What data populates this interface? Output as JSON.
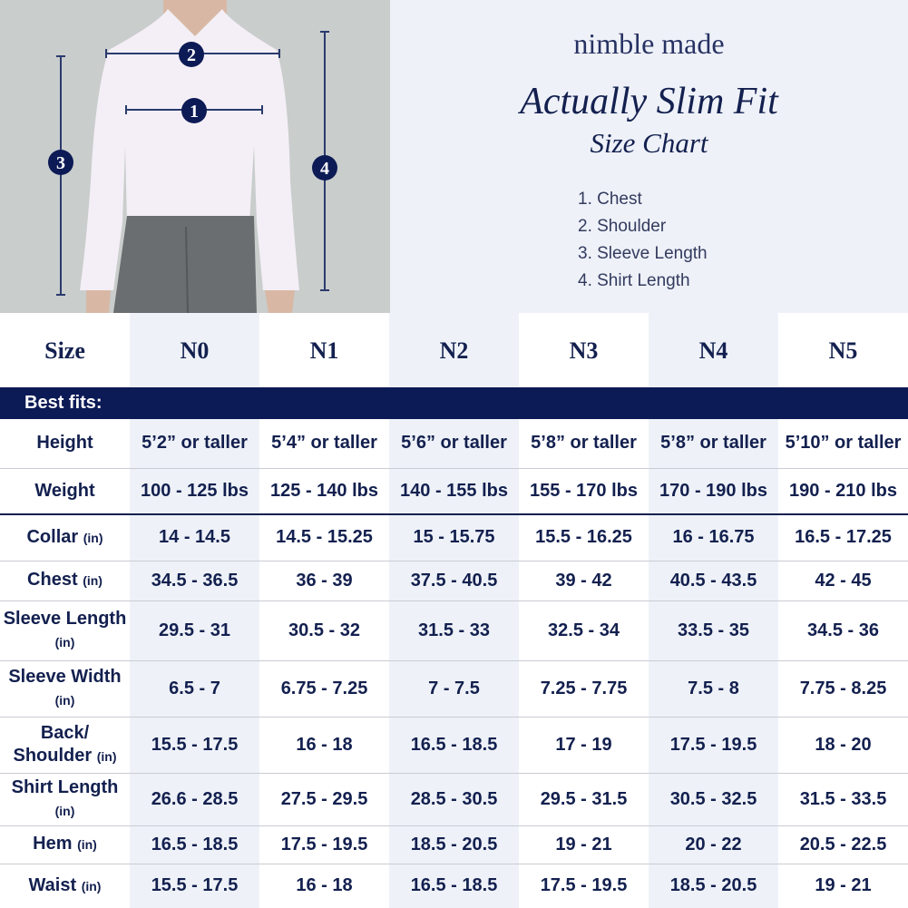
{
  "brand": "nimble made",
  "title": "Actually Slim Fit",
  "subtitle": "Size Chart",
  "legend": [
    "1. Chest",
    "2. Shoulder",
    "3. Sleeve Length",
    "4. Shirt Length"
  ],
  "markers": [
    "1",
    "2",
    "3",
    "4"
  ],
  "colors": {
    "navy": "#0c1a55",
    "shade": "#eef2f8"
  },
  "table": {
    "size_label": "Size",
    "sizes": [
      "N0",
      "N1",
      "N2",
      "N3",
      "N4",
      "N5"
    ],
    "band_label": "Best fits:",
    "unit": "(in)",
    "fit_rows": [
      {
        "label": "Height",
        "values": [
          "5’2” or taller",
          "5’4” or taller",
          "5’6” or taller",
          "5’8” or taller",
          "5’8” or taller",
          "5’10” or taller"
        ]
      },
      {
        "label": "Weight",
        "values": [
          "100 - 125 lbs",
          "125 - 140 lbs",
          "140 - 155 lbs",
          "155 - 170 lbs",
          "170 - 190 lbs",
          "190 - 210 lbs"
        ]
      }
    ],
    "rows": [
      {
        "label": "Collar",
        "values": [
          "14 - 14.5",
          "14.5 - 15.25",
          "15 - 15.75",
          "15.5 - 16.25",
          "16 - 16.75",
          "16.5 - 17.25"
        ]
      },
      {
        "label": "Chest",
        "values": [
          "34.5 - 36.5",
          "36 - 39",
          "37.5 - 40.5",
          "39 - 42",
          "40.5 - 43.5",
          "42 - 45"
        ]
      },
      {
        "label": "Sleeve Length",
        "values": [
          "29.5 - 31",
          "30.5 - 32",
          "31.5 - 33",
          "32.5 - 34",
          "33.5 - 35",
          "34.5 - 36"
        ]
      },
      {
        "label": "Sleeve Width",
        "values": [
          "6.5 - 7",
          "6.75 - 7.25",
          "7 - 7.5",
          "7.25 - 7.75",
          "7.5 - 8",
          "7.75 - 8.25"
        ]
      },
      {
        "label": "Back/ Shoulder",
        "values": [
          "15.5 - 17.5",
          "16 - 18",
          "16.5 - 18.5",
          "17 - 19",
          "17.5 - 19.5",
          "18 - 20"
        ]
      },
      {
        "label": "Shirt Length",
        "values": [
          "26.6 - 28.5",
          "27.5 - 29.5",
          "28.5 - 30.5",
          "29.5 - 31.5",
          "30.5 - 32.5",
          "31.5 - 33.5"
        ]
      },
      {
        "label": "Hem",
        "values": [
          "16.5 - 18.5",
          "17.5 - 19.5",
          "18.5 - 20.5",
          "19 - 21",
          "20 - 22",
          "20.5 - 22.5"
        ]
      },
      {
        "label": "Waist",
        "values": [
          "15.5 - 17.5",
          "16 - 18",
          "16.5 - 18.5",
          "17.5 - 19.5",
          "18.5 - 20.5",
          "19 - 21"
        ]
      }
    ]
  }
}
